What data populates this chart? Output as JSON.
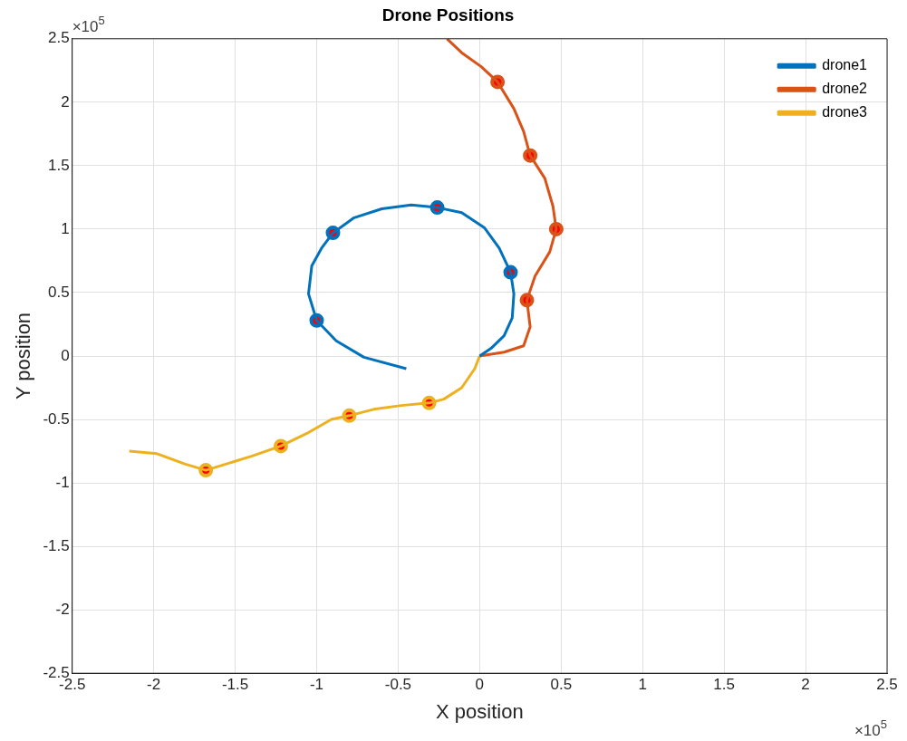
{
  "chart_data": {
    "type": "line",
    "title": "Drone Positions",
    "xlabel": "X position",
    "ylabel": "Y position",
    "annotations": [
      "×10$^{5}$",
      "×10$^{5}$"
    ],
    "xlim": [
      -2.5,
      2.5
    ],
    "ylim": [
      -2.5,
      2.5
    ],
    "xticks": [
      -2.5,
      -2,
      -1.5,
      -1,
      -0.5,
      0,
      0.5,
      1,
      1.5,
      2,
      2.5
    ],
    "yticks": [
      -2.5,
      -2,
      -1.5,
      -1,
      -0.5,
      0,
      0.5,
      1,
      1.5,
      2,
      2.5
    ],
    "grid": true,
    "legend": "top right",
    "marker": "circle",
    "series": [
      {
        "name": "drone1",
        "color": "#0072bd",
        "marker": "none",
        "x": [
          -0.45,
          -0.71,
          -0.88,
          -1.0,
          -1.05,
          -1.03,
          -0.97,
          -0.9,
          -0.77,
          -0.6,
          -0.42,
          -0.26,
          -0.11,
          0.03,
          0.12,
          0.19,
          0.21,
          0.2,
          0.15,
          0.07,
          0
        ],
        "values": [
          -0.1,
          -0.01,
          0.12,
          0.28,
          0.49,
          0.71,
          0.85,
          0.97,
          1.09,
          1.16,
          1.19,
          1.17,
          1.13,
          1.01,
          0.85,
          0.66,
          0.49,
          0.3,
          0.16,
          0.06,
          0
        ]
      },
      {
        "name": "drone2",
        "color": "#d95319",
        "marker": "none",
        "x": [
          0,
          0.15,
          0.27,
          0.31,
          0.29,
          0.34,
          0.43,
          0.47,
          0.45,
          0.4,
          0.31,
          0.27,
          0.21,
          0.11,
          0.01,
          -0.11,
          -0.2
        ],
        "values": [
          0,
          0.03,
          0.08,
          0.23,
          0.44,
          0.63,
          0.82,
          1.0,
          1.18,
          1.4,
          1.58,
          1.77,
          1.95,
          2.16,
          2.28,
          2.39,
          2.5
        ]
      },
      {
        "name": "drone3",
        "color": "#edb120",
        "marker": "none",
        "x": [
          0,
          -0.03,
          -0.11,
          -0.22,
          -0.31,
          -0.48,
          -0.65,
          -0.8,
          -0.91,
          -1.06,
          -1.22,
          -1.4,
          -1.68,
          -1.81,
          -1.98,
          -2.15
        ],
        "values": [
          0,
          -0.1,
          -0.25,
          -0.34,
          -0.37,
          -0.39,
          -0.42,
          -0.47,
          -0.5,
          -0.61,
          -0.71,
          -0.79,
          -0.9,
          -0.85,
          -0.77,
          -0.75
        ]
      },
      {
        "type": "scatter",
        "color": "#0072bd",
        "x": [
          -1.0,
          -0.9,
          -0.26,
          0.19
        ],
        "values": [
          0.28,
          0.97,
          1.17,
          0.66
        ]
      },
      {
        "type": "scatter",
        "color": "#d95319",
        "x": [
          0.29,
          0.47,
          0.31,
          0.11
        ],
        "values": [
          0.44,
          1.0,
          1.58,
          2.16
        ]
      },
      {
        "type": "scatter",
        "color": "#edb120",
        "x": [
          -0.31,
          -0.8,
          -1.22,
          -1.68
        ],
        "values": [
          -0.37,
          -0.47,
          -0.71,
          -0.9
        ]
      }
    ]
  }
}
